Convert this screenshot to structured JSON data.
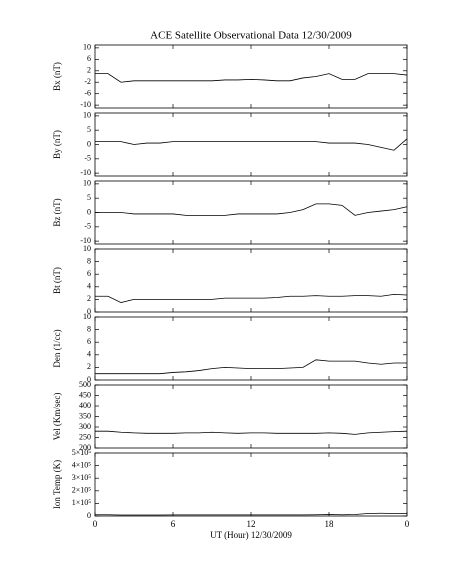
{
  "chart_data": [
    {
      "type": "line",
      "title": "ACE Satellite Observational Data   12/30/2009",
      "ylabel": "Bx (nT)",
      "x": [
        0,
        1,
        2,
        3,
        4,
        5,
        6,
        7,
        8,
        9,
        10,
        11,
        12,
        13,
        14,
        15,
        16,
        17,
        18,
        19,
        20,
        21,
        22,
        23,
        24
      ],
      "values": [
        1,
        1,
        -2,
        -1.5,
        -1.5,
        -1.5,
        -1.5,
        -1.5,
        -1.5,
        -1.5,
        -1.2,
        -1.2,
        -1,
        -1.2,
        -1.5,
        -1.5,
        -0.5,
        0,
        1,
        -1,
        -1,
        1,
        1,
        1,
        0.5
      ],
      "xlim": [
        0,
        24
      ],
      "ylim": [
        -11,
        11
      ],
      "yticks": [
        -10,
        -6,
        -2,
        2,
        6,
        10
      ]
    },
    {
      "type": "line",
      "ylabel": "By (nT)",
      "x": [
        0,
        1,
        2,
        3,
        4,
        5,
        6,
        7,
        8,
        9,
        10,
        11,
        12,
        13,
        14,
        15,
        16,
        17,
        18,
        19,
        20,
        21,
        22,
        23,
        24
      ],
      "values": [
        1,
        1,
        1,
        0,
        0.5,
        0.5,
        1,
        1,
        1,
        1,
        1,
        1,
        1,
        1,
        1,
        1,
        1,
        1,
        0.5,
        0.5,
        0.5,
        0,
        -1,
        -2,
        2
      ],
      "xlim": [
        0,
        24
      ],
      "ylim": [
        -11,
        11
      ],
      "yticks": [
        -10,
        -5,
        0,
        5,
        10
      ]
    },
    {
      "type": "line",
      "ylabel": "Bz (nT)",
      "x": [
        0,
        1,
        2,
        3,
        4,
        5,
        6,
        7,
        8,
        9,
        10,
        11,
        12,
        13,
        14,
        15,
        16,
        17,
        18,
        19,
        20,
        21,
        22,
        23,
        24
      ],
      "values": [
        0,
        0,
        0,
        -0.5,
        -0.5,
        -0.5,
        -0.5,
        -1,
        -1,
        -1,
        -1,
        -0.5,
        -0.5,
        -0.5,
        -0.5,
        0,
        1,
        3,
        3,
        2.5,
        -1,
        0,
        0.5,
        1,
        2
      ],
      "xlim": [
        0,
        24
      ],
      "ylim": [
        -11,
        11
      ],
      "yticks": [
        -10,
        -5,
        0,
        5,
        10
      ]
    },
    {
      "type": "line",
      "ylabel": "Bt (nT)",
      "x": [
        0,
        1,
        2,
        3,
        4,
        5,
        6,
        7,
        8,
        9,
        10,
        11,
        12,
        13,
        14,
        15,
        16,
        17,
        18,
        19,
        20,
        21,
        22,
        23,
        24
      ],
      "values": [
        2.5,
        2.5,
        1.5,
        2,
        2,
        2,
        2,
        2,
        2,
        2,
        2.2,
        2.2,
        2.2,
        2.2,
        2.3,
        2.5,
        2.5,
        2.6,
        2.5,
        2.5,
        2.6,
        2.6,
        2.5,
        2.8,
        2.7
      ],
      "xlim": [
        0,
        24
      ],
      "ylim": [
        0,
        10
      ],
      "yticks": [
        0,
        2,
        4,
        6,
        8,
        10
      ]
    },
    {
      "type": "line",
      "ylabel": "Den (1/cc)",
      "x": [
        0,
        1,
        2,
        3,
        4,
        5,
        6,
        7,
        8,
        9,
        10,
        11,
        12,
        13,
        14,
        15,
        16,
        17,
        18,
        19,
        20,
        21,
        22,
        23,
        24
      ],
      "values": [
        1,
        1,
        1,
        1,
        1,
        1,
        1.2,
        1.3,
        1.5,
        1.8,
        2,
        1.9,
        1.8,
        1.8,
        1.8,
        1.9,
        2,
        3.2,
        3,
        3,
        3,
        2.7,
        2.5,
        2.7,
        2.7
      ],
      "xlim": [
        0,
        24
      ],
      "ylim": [
        0,
        10
      ],
      "yticks": [
        0,
        2,
        4,
        6,
        8,
        10
      ]
    },
    {
      "type": "line",
      "ylabel": "Vel (Km/sec)",
      "x": [
        0,
        1,
        2,
        3,
        4,
        5,
        6,
        7,
        8,
        9,
        10,
        11,
        12,
        13,
        14,
        15,
        16,
        17,
        18,
        19,
        20,
        21,
        22,
        23,
        24
      ],
      "values": [
        280,
        280,
        275,
        272,
        270,
        270,
        270,
        272,
        272,
        275,
        272,
        270,
        272,
        272,
        270,
        270,
        270,
        270,
        272,
        270,
        265,
        272,
        275,
        278,
        280
      ],
      "xlim": [
        0,
        24
      ],
      "ylim": [
        200,
        500
      ],
      "yticks": [
        200,
        250,
        300,
        350,
        400,
        450,
        500
      ]
    },
    {
      "type": "line",
      "ylabel": "Ion Temp (K)",
      "xlabel": "UT (Hour)   12/30/2009",
      "x": [
        0,
        1,
        2,
        3,
        4,
        5,
        6,
        7,
        8,
        9,
        10,
        11,
        12,
        13,
        14,
        15,
        16,
        17,
        18,
        19,
        20,
        21,
        22,
        23,
        24
      ],
      "values": [
        10000,
        10000,
        8000,
        8000,
        8000,
        8000,
        9000,
        9000,
        9000,
        9000,
        9000,
        9000,
        9000,
        9000,
        9000,
        9000,
        9000,
        10000,
        12000,
        10000,
        12000,
        20000,
        22000,
        20000,
        20000
      ],
      "xlim": [
        0,
        24
      ],
      "ylim": [
        0,
        500000
      ],
      "yticks": [
        0,
        {
          "value": 100000,
          "label": "1×10⁵"
        },
        {
          "value": 200000,
          "label": "2×10⁵"
        },
        {
          "value": 300000,
          "label": "3×10⁵"
        },
        {
          "value": 400000,
          "label": "4×10⁵"
        },
        {
          "value": 500000,
          "label": "5×10⁵"
        }
      ],
      "xticks": [
        0,
        6,
        12,
        18,
        {
          "value": 24,
          "label": "0"
        }
      ]
    }
  ]
}
